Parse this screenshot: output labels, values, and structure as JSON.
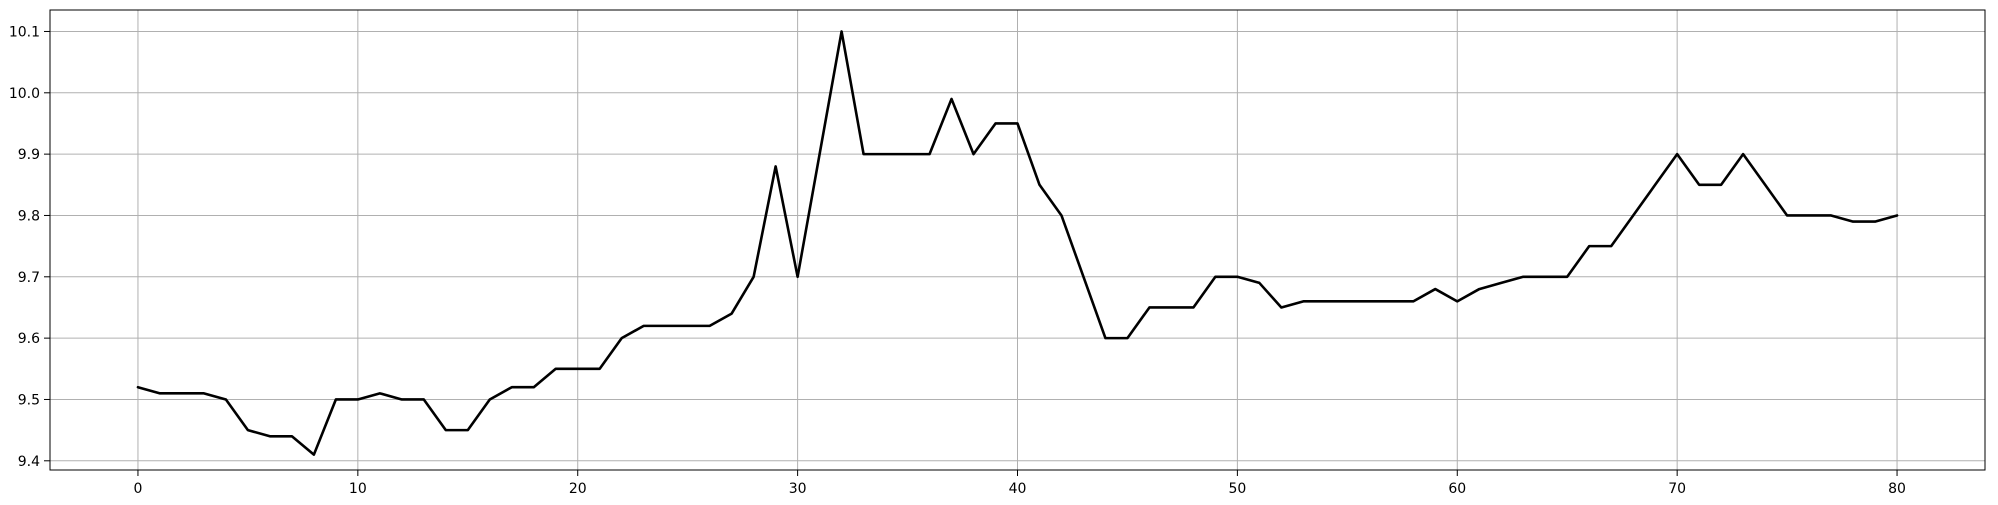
{
  "chart_data": {
    "type": "line",
    "title": "",
    "xlabel": "",
    "ylabel": "",
    "xlim": [
      -4,
      84
    ],
    "ylim": [
      9.385,
      10.135
    ],
    "grid": true,
    "legend": "none",
    "line_color": "#000000",
    "grid_color": "#b0b0b0",
    "xticks": [
      0,
      10,
      20,
      30,
      40,
      50,
      60,
      70,
      80
    ],
    "xtick_labels": [
      "0",
      "10",
      "20",
      "30",
      "40",
      "50",
      "60",
      "70",
      "80"
    ],
    "yticks": [
      9.4,
      9.5,
      9.6,
      9.7,
      9.8,
      9.9,
      10.0,
      10.1
    ],
    "ytick_labels": [
      "9.4",
      "9.5",
      "9.6",
      "9.7",
      "9.8",
      "9.9",
      "10.0",
      "10.1"
    ],
    "series": [
      {
        "x": [
          0,
          1,
          2,
          3,
          4,
          5,
          6,
          7,
          8,
          9,
          10,
          11,
          12,
          13,
          14,
          15,
          16,
          17,
          18,
          19,
          20,
          21,
          22,
          23,
          24,
          25,
          26,
          27,
          28,
          29,
          30,
          31,
          32,
          33,
          34,
          35,
          36,
          37,
          38,
          39,
          40,
          41,
          42,
          43,
          44,
          45,
          46,
          47,
          48,
          49,
          50,
          51,
          52,
          53,
          54,
          55,
          56,
          57,
          58,
          59,
          60,
          61,
          62,
          63,
          64,
          65,
          66,
          67,
          68,
          69,
          70,
          71,
          72,
          73,
          74,
          75,
          76,
          77,
          78,
          79,
          80
        ],
        "values": [
          9.52,
          9.51,
          9.51,
          9.51,
          9.5,
          9.45,
          9.44,
          9.44,
          9.41,
          9.5,
          9.5,
          9.51,
          9.5,
          9.5,
          9.45,
          9.45,
          9.5,
          9.52,
          9.52,
          9.55,
          9.55,
          9.55,
          9.6,
          9.62,
          9.62,
          9.62,
          9.62,
          9.64,
          9.7,
          9.88,
          9.7,
          9.9,
          10.1,
          9.9,
          9.9,
          9.9,
          9.9,
          9.99,
          9.9,
          9.95,
          9.95,
          9.85,
          9.8,
          9.7,
          9.6,
          9.6,
          9.65,
          9.65,
          9.65,
          9.7,
          9.7,
          9.69,
          9.65,
          9.66,
          9.66,
          9.66,
          9.66,
          9.66,
          9.66,
          9.68,
          9.66,
          9.68,
          9.69,
          9.7,
          9.7,
          9.7,
          9.75,
          9.75,
          9.8,
          9.85,
          9.9,
          9.85,
          9.85,
          9.9,
          9.85,
          9.8,
          9.8,
          9.8,
          9.79,
          9.79,
          9.8
        ]
      }
    ]
  }
}
